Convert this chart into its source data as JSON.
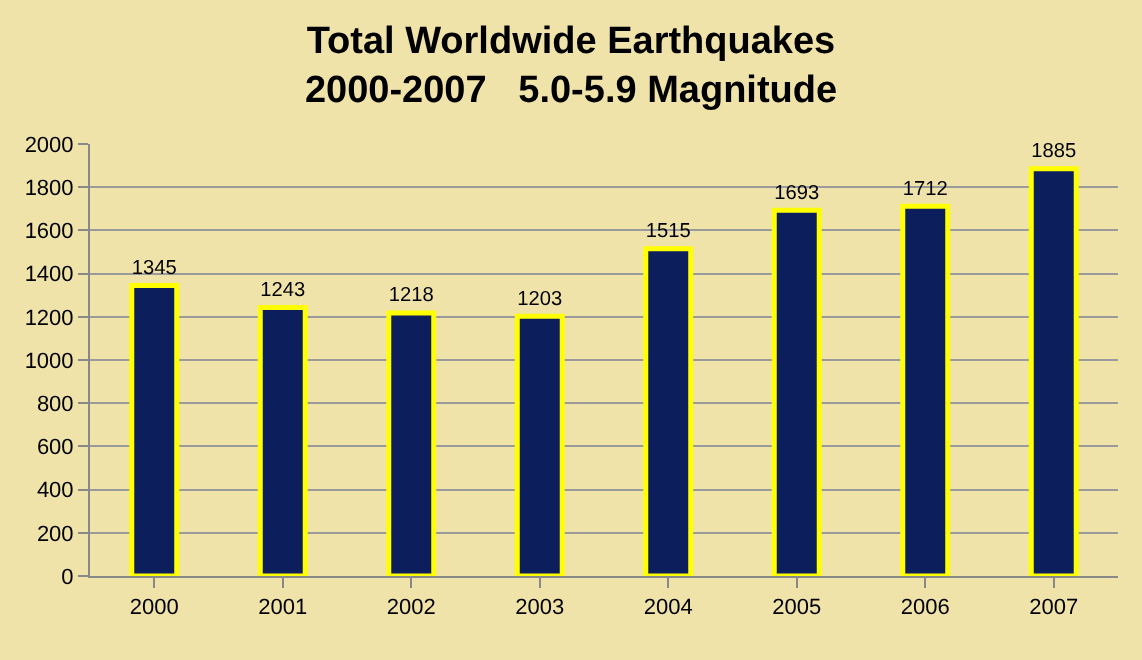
{
  "chart_data": {
    "type": "bar",
    "title": "Total Worldwide Earthquakes\n2000-2007   5.0-5.9 Magnitude",
    "categories": [
      "2000",
      "2001",
      "2002",
      "2003",
      "2004",
      "2005",
      "2006",
      "2007"
    ],
    "values": [
      1345,
      1243,
      1218,
      1203,
      1515,
      1693,
      1712,
      1885
    ],
    "color": "#0c1f5c",
    "ylim": [
      0,
      2000
    ],
    "yticks": [
      0,
      200,
      400,
      600,
      800,
      1000,
      1200,
      1400,
      1600,
      1800,
      2000
    ],
    "grid": "y",
    "data_labels": true,
    "legend": false
  }
}
